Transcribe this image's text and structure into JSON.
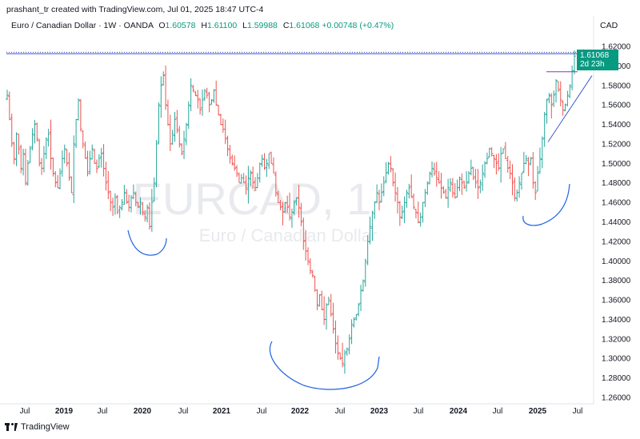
{
  "header": {
    "attribution": "prashant_tr created with TradingView.com, Jul 01, 2025 18:47 UTC-4"
  },
  "legend": {
    "symbol": "Euro / Canadian Dollar · 1W · OANDA",
    "open_label": "O",
    "open": "1.60578",
    "high_label": "H",
    "high": "1.61100",
    "low_label": "L",
    "low": "1.59988",
    "close_label": "C",
    "close": "1.61068",
    "change": "+0.00748 (+0.47%)"
  },
  "currency": "CAD",
  "watermark": {
    "ticker": "EURCAD, 1",
    "name": "Euro / Canadian Dollar"
  },
  "price_tag": {
    "price": "1.61068",
    "countdown": "2d 23h"
  },
  "footer": {
    "brand": "TradingView"
  },
  "colors": {
    "up": "#26a69a",
    "down": "#ef5350",
    "annotation": "#1e63e0",
    "tag": "#089981",
    "level": "#3b4bc8"
  },
  "chart_data": {
    "type": "ohlc",
    "yaxis": {
      "ticks": [
        "1.62000",
        "1.60000",
        "1.58000",
        "1.56000",
        "1.54000",
        "1.52000",
        "1.50000",
        "1.48000",
        "1.46000",
        "1.44000",
        "1.42000",
        "1.40000",
        "1.38000",
        "1.36000",
        "1.34000",
        "1.32000",
        "1.30000",
        "1.28000",
        "1.26000"
      ],
      "ylim": [
        1.255,
        1.625
      ]
    },
    "xaxis": {
      "ticks": [
        {
          "label": "Jul",
          "bold": false
        },
        {
          "label": "2019",
          "bold": true
        },
        {
          "label": "Jul",
          "bold": false
        },
        {
          "label": "2020",
          "bold": true
        },
        {
          "label": "Jul",
          "bold": false
        },
        {
          "label": "2021",
          "bold": true
        },
        {
          "label": "Jul",
          "bold": false
        },
        {
          "label": "2022",
          "bold": true
        },
        {
          "label": "Jul",
          "bold": false
        },
        {
          "label": "2023",
          "bold": true
        },
        {
          "label": "Jul",
          "bold": false
        },
        {
          "label": "2024",
          "bold": true
        },
        {
          "label": "Jul",
          "bold": false
        },
        {
          "label": "2025",
          "bold": true
        },
        {
          "label": "Jul",
          "bold": false
        }
      ]
    },
    "path_closes": [
      1.57,
      1.545,
      1.52,
      1.505,
      1.53,
      1.515,
      1.495,
      1.51,
      1.48,
      1.5,
      1.515,
      1.53,
      1.54,
      1.525,
      1.5,
      1.495,
      1.51,
      1.525,
      1.53,
      1.505,
      1.49,
      1.48,
      1.475,
      1.49,
      1.505,
      1.515,
      1.5,
      1.485,
      1.47,
      1.52,
      1.545,
      1.565,
      1.535,
      1.52,
      1.505,
      1.49,
      1.505,
      1.515,
      1.5,
      1.495,
      1.505,
      1.51,
      1.495,
      1.48,
      1.47,
      1.46,
      1.455,
      1.465,
      1.45,
      1.455,
      1.46,
      1.47,
      1.46,
      1.455,
      1.465,
      1.47,
      1.46,
      1.455,
      1.46,
      1.45,
      1.445,
      1.455,
      1.435,
      1.46,
      1.48,
      1.52,
      1.56,
      1.58,
      1.59,
      1.56,
      1.54,
      1.52,
      1.53,
      1.545,
      1.535,
      1.52,
      1.51,
      1.525,
      1.54,
      1.56,
      1.58,
      1.575,
      1.57,
      1.565,
      1.555,
      1.565,
      1.575,
      1.57,
      1.56,
      1.565,
      1.575,
      1.56,
      1.55,
      1.54,
      1.535,
      1.525,
      1.515,
      1.505,
      1.5,
      1.495,
      1.49,
      1.48,
      1.485,
      1.48,
      1.475,
      1.485,
      1.49,
      1.48,
      1.475,
      1.485,
      1.5,
      1.505,
      1.495,
      1.5,
      1.51,
      1.5,
      1.49,
      1.47,
      1.46,
      1.455,
      1.45,
      1.46,
      1.455,
      1.445,
      1.45,
      1.46,
      1.465,
      1.455,
      1.44,
      1.42,
      1.41,
      1.4,
      1.39,
      1.385,
      1.37,
      1.355,
      1.365,
      1.35,
      1.34,
      1.355,
      1.36,
      1.345,
      1.33,
      1.315,
      1.305,
      1.3,
      1.295,
      1.305,
      1.31,
      1.32,
      1.335,
      1.34,
      1.345,
      1.355,
      1.37,
      1.38,
      1.4,
      1.42,
      1.435,
      1.45,
      1.46,
      1.47,
      1.46,
      1.47,
      1.48,
      1.49,
      1.5,
      1.495,
      1.48,
      1.47,
      1.46,
      1.445,
      1.45,
      1.46,
      1.47,
      1.475,
      1.465,
      1.455,
      1.45,
      1.44,
      1.445,
      1.46,
      1.47,
      1.48,
      1.49,
      1.495,
      1.49,
      1.485,
      1.48,
      1.475,
      1.47,
      1.465,
      1.475,
      1.48,
      1.47,
      1.465,
      1.475,
      1.485,
      1.48,
      1.475,
      1.48,
      1.49,
      1.495,
      1.485,
      1.48,
      1.475,
      1.48,
      1.49,
      1.5,
      1.505,
      1.515,
      1.51,
      1.505,
      1.5,
      1.495,
      1.51,
      1.515,
      1.505,
      1.495,
      1.49,
      1.48,
      1.465,
      1.47,
      1.48,
      1.49,
      1.5,
      1.505,
      1.5,
      1.505,
      1.48,
      1.47,
      1.49,
      1.505,
      1.525,
      1.55,
      1.565,
      1.57,
      1.56,
      1.57,
      1.585,
      1.575,
      1.565,
      1.555,
      1.56,
      1.57,
      1.58,
      1.595,
      1.61
    ],
    "annotations": [
      {
        "type": "horizontal_line",
        "price": 1.6125,
        "style": "solid"
      },
      {
        "type": "horizontal_line",
        "price": 1.614,
        "style": "dotted"
      },
      {
        "type": "horizontal_line",
        "price": 1.594,
        "style": "solid"
      },
      {
        "type": "trendline",
        "from": 1.522,
        "to": 1.59
      },
      {
        "type": "arc",
        "location": "2019 low"
      },
      {
        "type": "arc",
        "location": "2022 low"
      },
      {
        "type": "arc",
        "location": "2024 low"
      },
      {
        "type": "arrows",
        "count": 3
      }
    ]
  }
}
